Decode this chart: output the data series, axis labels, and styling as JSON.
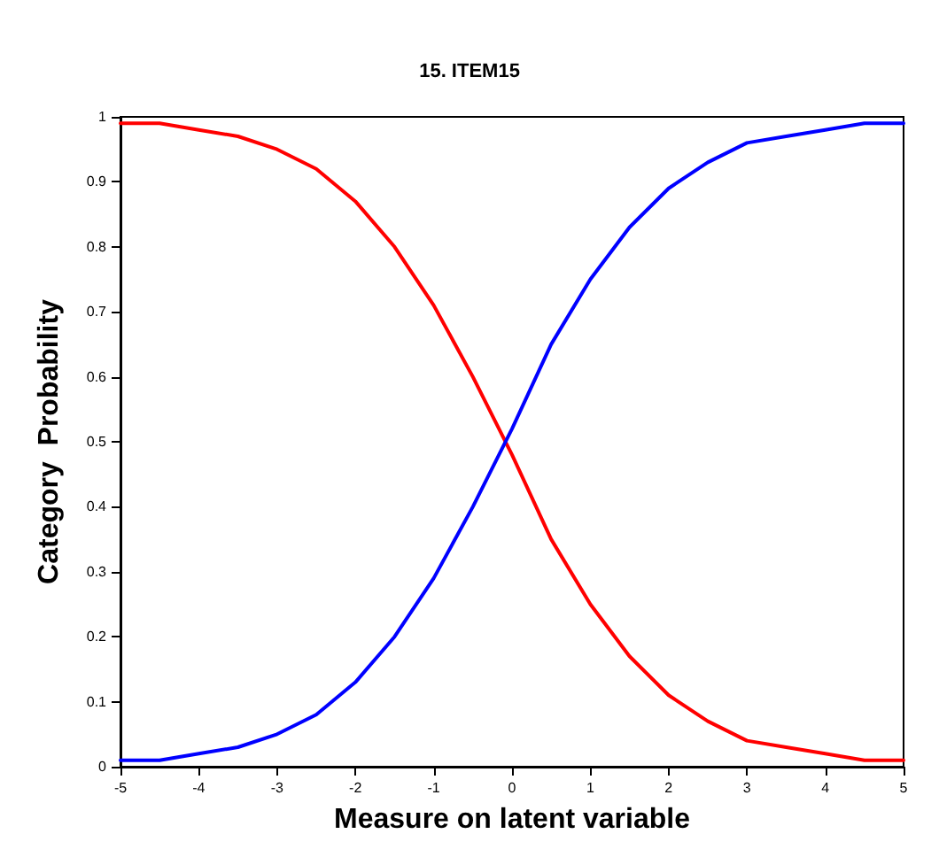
{
  "chart_data": {
    "type": "line",
    "title": "15. ITEM15",
    "xlabel": "Measure on latent variable",
    "ylabel": "Category  Probability",
    "x": [
      -5,
      -4.5,
      -4,
      -3.5,
      -3,
      -2.5,
      -2,
      -1.5,
      -1,
      -0.5,
      0,
      0.5,
      1,
      1.5,
      2,
      2.5,
      3,
      3.5,
      4,
      4.5,
      5
    ],
    "series": [
      {
        "color": "#ff0000",
        "values": [
          0.99,
          0.99,
          0.98,
          0.97,
          0.95,
          0.92,
          0.87,
          0.8,
          0.71,
          0.6,
          0.48,
          0.35,
          0.25,
          0.17,
          0.11,
          0.07,
          0.04,
          0.03,
          0.02,
          0.01,
          0.01
        ]
      },
      {
        "color": "#0000ff",
        "values": [
          0.01,
          0.01,
          0.02,
          0.03,
          0.05,
          0.08,
          0.13,
          0.2,
          0.29,
          0.4,
          0.52,
          0.65,
          0.75,
          0.83,
          0.89,
          0.93,
          0.96,
          0.97,
          0.98,
          0.99,
          0.99
        ]
      }
    ],
    "xlim": [
      -5,
      5
    ],
    "xticks": [
      -5,
      -4,
      -3,
      -2,
      -1,
      0,
      1,
      2,
      3,
      4,
      5
    ],
    "ylim": [
      0,
      1
    ],
    "yticks": [
      0,
      0.1,
      0.2,
      0.3,
      0.4,
      0.5,
      0.6,
      0.7,
      0.8,
      0.9,
      1
    ],
    "grid": false,
    "marker": "none",
    "line_style": "solid"
  }
}
